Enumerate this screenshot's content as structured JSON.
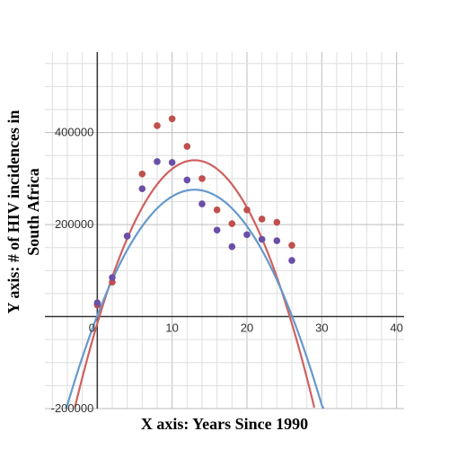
{
  "chart_data": {
    "type": "scatter",
    "xlabel": "X axis: Years Since 1990",
    "ylabel": "Y axis: # of HIV incidences in South Africa",
    "xlim": [
      -7,
      41
    ],
    "ylim": [
      -200000,
      575000
    ],
    "x_ticks": [
      "0",
      "10",
      "20",
      "30",
      "40"
    ],
    "y_ticks": [
      "400000",
      "200000",
      "-200000"
    ],
    "grid": true,
    "series": [
      {
        "color": "#c0504d",
        "points": [
          [
            0,
            25000
          ],
          [
            2,
            75000
          ],
          [
            4,
            175000
          ],
          [
            6,
            310000
          ],
          [
            8,
            415000
          ],
          [
            10,
            430000
          ],
          [
            12,
            370000
          ],
          [
            14,
            300000
          ],
          [
            16,
            232000
          ],
          [
            18,
            202000
          ],
          [
            20,
            232000
          ],
          [
            22,
            212000
          ],
          [
            24,
            205000
          ],
          [
            26,
            155000
          ]
        ],
        "fit": {
          "type": "quadratic",
          "a": -2100,
          "b": 54600,
          "c": -15000
        }
      },
      {
        "color": "#6a4fa8",
        "points": [
          [
            0,
            30000
          ],
          [
            2,
            85000
          ],
          [
            4,
            175000
          ],
          [
            6,
            278000
          ],
          [
            8,
            337000
          ],
          [
            10,
            335000
          ],
          [
            12,
            297000
          ],
          [
            14,
            245000
          ],
          [
            16,
            188000
          ],
          [
            18,
            152000
          ],
          [
            20,
            178000
          ],
          [
            22,
            168000
          ],
          [
            24,
            165000
          ],
          [
            26,
            122000
          ]
        ],
        "fit": {
          "type": "quadratic",
          "a": -1620,
          "b": 42120,
          "c": 2000
        }
      }
    ],
    "fit_colors": [
      "#d06060",
      "#6699cc"
    ]
  }
}
